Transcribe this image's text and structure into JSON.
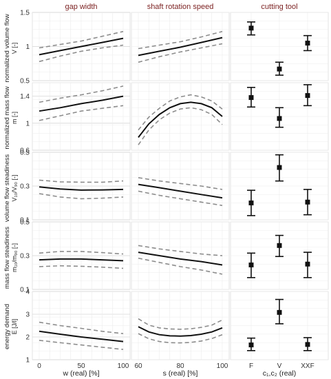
{
  "figure": {
    "col_titles": [
      "gap width",
      "shaft rotation speed",
      "cutting tool"
    ],
    "x_labels": [
      "w (real) [%]",
      "s (real) [%]",
      "c₁,c₂ (real)"
    ],
    "row_labels": [
      {
        "line1": "normalized volume flow",
        "line2": "V [-]"
      },
      {
        "line1": "normalized mass flow",
        "line2": "m [-]"
      },
      {
        "line1": "volume flow steadiness",
        "line2": "V₁₀/V₉₀ [-]"
      },
      {
        "line1": "mass flow steadiness",
        "line2": "m₁₀/m₉₀ [-]"
      },
      {
        "line1": "energy demand",
        "line2": "E [J/l]"
      }
    ]
  },
  "chart_data": [
    {
      "type": "line",
      "panel": "volume-flow-vs-gap-width",
      "ylim": [
        0.5,
        1.5
      ],
      "yticks": [
        0.5,
        1.0,
        1.5
      ],
      "xlim": [
        0,
        100
      ],
      "xticks": [
        0,
        50,
        100
      ],
      "series": [
        {
          "x": [
            0,
            25,
            50,
            75,
            100
          ],
          "fit": [
            0.88,
            0.94,
            1.0,
            1.06,
            1.12
          ],
          "lower": [
            0.78,
            0.86,
            0.93,
            0.98,
            1.02
          ],
          "upper": [
            0.98,
            1.03,
            1.08,
            1.15,
            1.22
          ]
        }
      ]
    },
    {
      "type": "line",
      "panel": "volume-flow-vs-shaft-speed",
      "ylim": [
        0.5,
        1.5
      ],
      "xlim": [
        60,
        100
      ],
      "xticks": [
        60,
        80,
        100
      ],
      "series": [
        {
          "x": [
            60,
            70,
            80,
            90,
            100
          ],
          "fit": [
            0.87,
            0.93,
            0.99,
            1.06,
            1.13
          ],
          "lower": [
            0.77,
            0.85,
            0.92,
            0.98,
            1.04
          ],
          "upper": [
            0.97,
            1.02,
            1.07,
            1.14,
            1.22
          ]
        }
      ]
    },
    {
      "type": "scatter",
      "panel": "volume-flow-vs-cutting-tool",
      "ylim": [
        0.5,
        1.5
      ],
      "categories": [
        "F",
        "V",
        "XXF"
      ],
      "values": [
        1.27,
        0.67,
        1.05
      ],
      "lower": [
        1.17,
        0.58,
        0.94
      ],
      "upper": [
        1.36,
        0.77,
        1.16
      ]
    },
    {
      "type": "line",
      "panel": "mass-flow-vs-gap-width",
      "ylim": [
        0.6,
        1.6
      ],
      "yticks": [
        0.6,
        1.0,
        1.4
      ],
      "xlim": [
        0,
        100
      ],
      "xticks": [
        0,
        50,
        100
      ],
      "series": [
        {
          "x": [
            0,
            25,
            50,
            75,
            100
          ],
          "fit": [
            1.18,
            1.23,
            1.29,
            1.34,
            1.4
          ],
          "lower": [
            1.04,
            1.11,
            1.18,
            1.22,
            1.26
          ],
          "upper": [
            1.31,
            1.37,
            1.42,
            1.48,
            1.55
          ]
        }
      ]
    },
    {
      "type": "line",
      "panel": "mass-flow-vs-shaft-speed",
      "ylim": [
        0.6,
        1.6
      ],
      "xlim": [
        60,
        100
      ],
      "xticks": [
        60,
        80,
        100
      ],
      "series": [
        {
          "x": [
            60,
            65,
            70,
            75,
            80,
            85,
            90,
            95,
            100
          ],
          "fit": [
            0.79,
            0.99,
            1.13,
            1.23,
            1.29,
            1.31,
            1.29,
            1.23,
            1.1
          ],
          "lower": [
            0.68,
            0.9,
            1.05,
            1.15,
            1.21,
            1.23,
            1.2,
            1.13,
            0.98
          ],
          "upper": [
            0.9,
            1.09,
            1.22,
            1.33,
            1.39,
            1.42,
            1.39,
            1.33,
            1.21
          ]
        }
      ]
    },
    {
      "type": "scatter",
      "panel": "mass-flow-vs-cutting-tool",
      "ylim": [
        0.6,
        1.6
      ],
      "categories": [
        "F",
        "V",
        "XXF"
      ],
      "values": [
        1.38,
        1.07,
        1.41
      ],
      "lower": [
        1.24,
        0.94,
        1.26
      ],
      "upper": [
        1.53,
        1.23,
        1.57
      ]
    },
    {
      "type": "line",
      "panel": "volume-flow-steadiness-vs-gap-width",
      "ylim": [
        0.1,
        0.5
      ],
      "yticks": [
        0.1,
        0.3,
        0.5
      ],
      "xlim": [
        0,
        100
      ],
      "xticks": [
        0,
        50,
        100
      ],
      "series": [
        {
          "x": [
            0,
            25,
            50,
            75,
            100
          ],
          "fit": [
            0.295,
            0.283,
            0.276,
            0.277,
            0.28
          ],
          "lower": [
            0.255,
            0.235,
            0.225,
            0.228,
            0.235
          ],
          "upper": [
            0.335,
            0.325,
            0.323,
            0.323,
            0.33
          ]
        }
      ]
    },
    {
      "type": "line",
      "panel": "volume-flow-steadiness-vs-shaft-speed",
      "ylim": [
        0.1,
        0.5
      ],
      "xlim": [
        60,
        100
      ],
      "xticks": [
        60,
        80,
        100
      ],
      "series": [
        {
          "x": [
            60,
            70,
            80,
            90,
            100
          ],
          "fit": [
            0.31,
            0.29,
            0.27,
            0.25,
            0.23
          ],
          "lower": [
            0.27,
            0.245,
            0.225,
            0.205,
            0.185
          ],
          "upper": [
            0.35,
            0.33,
            0.315,
            0.3,
            0.28
          ]
        }
      ]
    },
    {
      "type": "scatter",
      "panel": "volume-flow-steadiness-vs-cutting-tool",
      "ylim": [
        0.1,
        0.5
      ],
      "categories": [
        "F",
        "V",
        "XXF"
      ],
      "values": [
        0.2,
        0.41,
        0.205
      ],
      "lower": [
        0.125,
        0.33,
        0.13
      ],
      "upper": [
        0.275,
        0.485,
        0.28
      ]
    },
    {
      "type": "line",
      "panel": "mass-flow-steadiness-vs-gap-width",
      "ylim": [
        0.1,
        0.5
      ],
      "yticks": [
        0.1,
        0.3,
        0.5
      ],
      "xlim": [
        0,
        100
      ],
      "xticks": [
        0,
        50,
        100
      ],
      "series": [
        {
          "x": [
            0,
            25,
            50,
            75,
            100
          ],
          "fit": [
            0.275,
            0.28,
            0.28,
            0.275,
            0.27
          ],
          "lower": [
            0.235,
            0.24,
            0.237,
            0.232,
            0.225
          ],
          "upper": [
            0.315,
            0.325,
            0.325,
            0.318,
            0.31
          ]
        }
      ]
    },
    {
      "type": "line",
      "panel": "mass-flow-steadiness-vs-shaft-speed",
      "ylim": [
        0.1,
        0.5
      ],
      "xlim": [
        60,
        100
      ],
      "xticks": [
        60,
        80,
        100
      ],
      "series": [
        {
          "x": [
            60,
            70,
            80,
            90,
            100
          ],
          "fit": [
            0.32,
            0.3,
            0.28,
            0.265,
            0.245
          ],
          "lower": [
            0.285,
            0.26,
            0.235,
            0.215,
            0.19
          ],
          "upper": [
            0.36,
            0.34,
            0.325,
            0.31,
            0.3
          ]
        }
      ]
    },
    {
      "type": "scatter",
      "panel": "mass-flow-steadiness-vs-cutting-tool",
      "ylim": [
        0.1,
        0.5
      ],
      "categories": [
        "F",
        "V",
        "XXF"
      ],
      "values": [
        0.245,
        0.36,
        0.25
      ],
      "lower": [
        0.17,
        0.295,
        0.17
      ],
      "upper": [
        0.315,
        0.42,
        0.32
      ]
    },
    {
      "type": "line",
      "panel": "energy-demand-vs-gap-width",
      "ylim": [
        1,
        4
      ],
      "yticks": [
        1,
        2,
        3,
        4
      ],
      "xlim": [
        0,
        100
      ],
      "xticks": [
        0,
        50,
        100
      ],
      "series": [
        {
          "x": [
            0,
            25,
            50,
            75,
            100
          ],
          "fit": [
            2.25,
            2.12,
            2.0,
            1.9,
            1.8
          ],
          "lower": [
            1.85,
            1.75,
            1.65,
            1.55,
            1.45
          ],
          "upper": [
            2.65,
            2.5,
            2.38,
            2.25,
            2.15
          ]
        }
      ]
    },
    {
      "type": "line",
      "panel": "energy-demand-vs-shaft-speed",
      "ylim": [
        1,
        4
      ],
      "xlim": [
        60,
        100
      ],
      "xticks": [
        60,
        80,
        100
      ],
      "series": [
        {
          "x": [
            60,
            65,
            70,
            75,
            80,
            85,
            90,
            95,
            100
          ],
          "fit": [
            2.45,
            2.22,
            2.1,
            2.05,
            2.04,
            2.06,
            2.12,
            2.22,
            2.4
          ],
          "lower": [
            2.15,
            1.92,
            1.8,
            1.75,
            1.74,
            1.76,
            1.82,
            1.93,
            2.1
          ],
          "upper": [
            2.8,
            2.52,
            2.4,
            2.35,
            2.34,
            2.36,
            2.42,
            2.52,
            2.75
          ]
        }
      ]
    },
    {
      "type": "scatter",
      "panel": "energy-demand-vs-cutting-tool",
      "ylim": [
        1,
        4
      ],
      "categories": [
        "F",
        "V",
        "XXF"
      ],
      "values": [
        1.65,
        3.08,
        1.67
      ],
      "lower": [
        1.4,
        2.58,
        1.4
      ],
      "upper": [
        1.95,
        3.65,
        1.97
      ]
    }
  ]
}
